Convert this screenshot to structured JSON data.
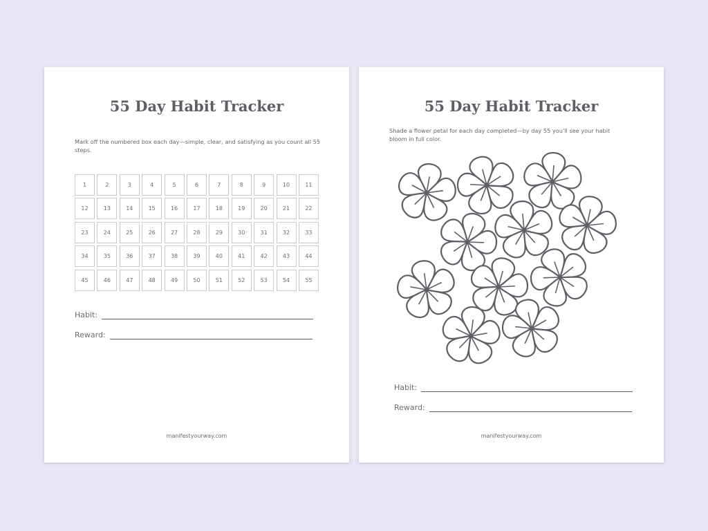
{
  "left_page": {
    "title": "55 Day Habit Tracker",
    "description": "Mark off the numbered box each day—simple, clear, and satisfying as you count all 55 steps.",
    "boxes": [
      1,
      2,
      3,
      4,
      5,
      6,
      7,
      8,
      9,
      10,
      11,
      12,
      13,
      14,
      15,
      16,
      17,
      18,
      19,
      20,
      21,
      22,
      23,
      24,
      25,
      26,
      27,
      28,
      29,
      30,
      31,
      32,
      33,
      34,
      35,
      36,
      37,
      38,
      39,
      40,
      41,
      42,
      43,
      44,
      45,
      46,
      47,
      48,
      49,
      50,
      51,
      52,
      53,
      54,
      55
    ],
    "habit_label": "Habit:",
    "reward_label": "Reward:",
    "footer": "manifestyourway.com"
  },
  "right_page": {
    "title": "55 Day Habit Tracker",
    "description": "Shade a flower petal for each day completed—by day 55 you'll see your habit bloom in full color.",
    "flower_count": 11,
    "petals_per_flower": 5,
    "habit_label": "Habit:",
    "reward_label": "Reward:",
    "footer": "manifestyourway.com"
  },
  "colors": {
    "background": "#e9e6f5",
    "ink": "#5e5f66",
    "box_border": "#c9c9cc"
  }
}
